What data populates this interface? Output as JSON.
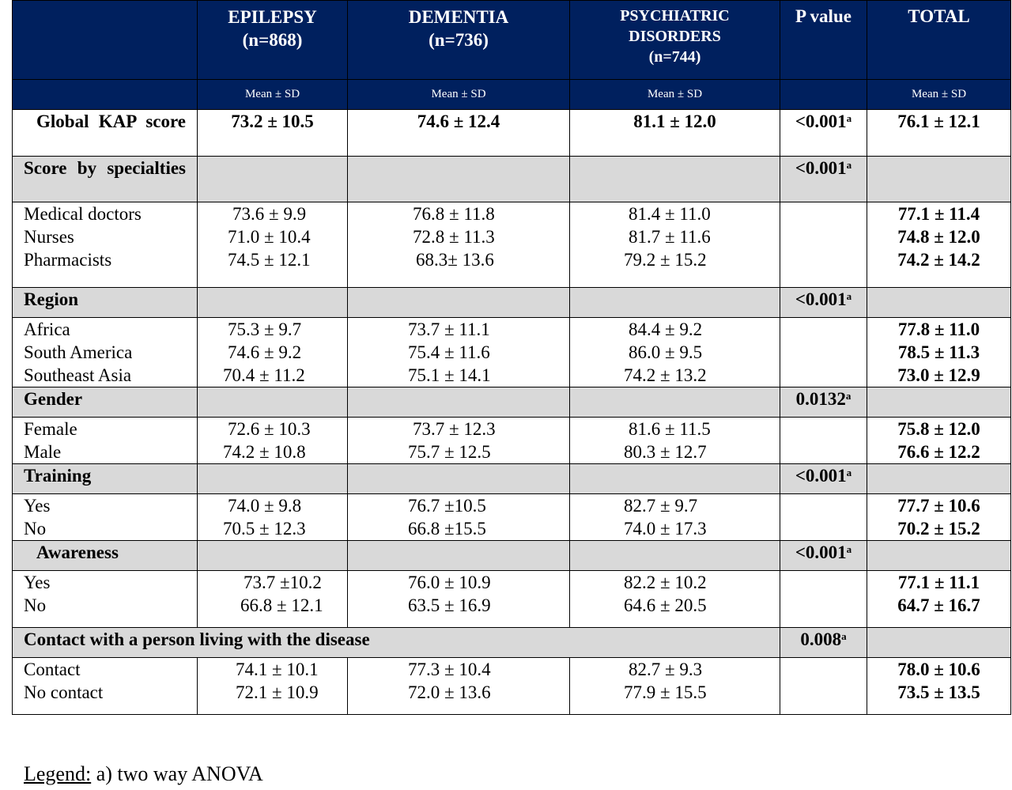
{
  "header": {
    "epilepsy": [
      "EPILEPSY",
      "(n=868)"
    ],
    "dementia": [
      "DEMENTIA",
      "(n=736)"
    ],
    "psychiatric": [
      "PSYCHIATRIC",
      "DISORDERS",
      "(n=744)"
    ],
    "pvalue": "P value",
    "total": "TOTAL",
    "subheader": "Mean ± SD"
  },
  "global": {
    "label": "Global KAP score",
    "epi": "73.2 ± 10.5",
    "dem": "74.6 ± 12.4",
    "psy": "81.1 ± 12.0",
    "p": "<0.001",
    "p_sup": "a",
    "total": "76.1 ± 12.1"
  },
  "specialties": {
    "label": "Score by specialties",
    "p": "<0.001",
    "p_sup": "a",
    "rows": [
      {
        "label": "Medical doctors",
        "epi": "73.6 ± 9.9",
        "dem": "76.8 ± 11.8",
        "psy": "81.4 ± 11.0",
        "total": "77.1 ± 11.4"
      },
      {
        "label": "Nurses",
        "epi": "71.0 ± 10.4",
        "dem": "72.8 ± 11.3",
        "psy": "81.7 ± 11.6",
        "total": "74.8 ± 12.0"
      },
      {
        "label": "Pharmacists",
        "epi": "74.5 ± 12.1",
        "dem": "68.3± 13.6",
        "psy": "79.2 ± 15.2",
        "total": "74.2 ± 14.2"
      }
    ]
  },
  "region": {
    "label": "Region",
    "p": "<0.001",
    "p_sup": "a",
    "rows": [
      {
        "label": "Africa",
        "epi": "75.3 ± 9.7",
        "dem": "73.7 ± 11.1",
        "psy": "84.4 ± 9.2",
        "total": "77.8 ± 11.0"
      },
      {
        "label": "South America",
        "epi": "74.6 ± 9.2",
        "dem": "75.4 ± 11.6",
        "psy": "86.0 ± 9.5",
        "total": "78.5 ± 11.3"
      },
      {
        "label": "Southeast Asia",
        "epi": "70.4 ± 11.2",
        "dem": "75.1 ± 14.1",
        "psy": "74.2 ± 13.2",
        "total": "73.0 ± 12.9"
      }
    ]
  },
  "gender": {
    "label": "Gender",
    "p": "0.0132",
    "p_sup": "a",
    "rows": [
      {
        "label": "Female",
        "epi": "72.6 ± 10.3",
        "dem": "73.7 ± 12.3",
        "psy": "81.6 ± 11.5",
        "total": "75.8 ± 12.0"
      },
      {
        "label": "Male",
        "epi": "74.2 ± 10.8",
        "dem": "75.7 ± 12.5",
        "psy": "80.3 ± 12.7",
        "total": "76.6 ± 12.2"
      }
    ]
  },
  "training": {
    "label": "Training",
    "p": "<0.001",
    "p_sup": "a",
    "rows": [
      {
        "label": "Yes",
        "epi": "74.0 ± 9.8",
        "dem": "76.7 ±10.5",
        "psy": "82.7 ± 9.7",
        "total": "77.7 ± 10.6"
      },
      {
        "label": "No",
        "epi": "70.5 ± 12.3",
        "dem": "66.8 ±15.5",
        "psy": "74.0 ± 17.3",
        "total": "70.2 ± 15.2"
      }
    ]
  },
  "awareness": {
    "label": "Awareness",
    "p": "<0.001",
    "p_sup": "a",
    "rows": [
      {
        "label": "Yes",
        "epi": "73.7 ±10.2",
        "dem": "76.0 ± 10.9",
        "psy": "82.2 ± 10.2",
        "total": "77.1 ± 11.1"
      },
      {
        "label": "No",
        "epi": "66.8 ± 12.1",
        "dem": "63.5 ± 16.9",
        "psy": "64.6 ± 20.5",
        "total": "64.7 ± 16.7"
      }
    ]
  },
  "contact": {
    "label": "Contact with a person living with the disease",
    "p": "0.008",
    "p_sup": "a",
    "rows": [
      {
        "label": "Contact",
        "epi": "74.1 ± 10.1",
        "dem": "77.3 ± 10.4",
        "psy": "82.7 ± 9.3",
        "total": "78.0 ± 10.6"
      },
      {
        "label": "No contact",
        "epi": "72.1 ± 10.9",
        "dem": "72.0 ± 13.6",
        "psy": "77.9 ± 15.5",
        "total": "73.5 ± 13.5"
      }
    ]
  },
  "legend": {
    "title": "Legend:",
    "text": " a) two way ANOVA"
  }
}
